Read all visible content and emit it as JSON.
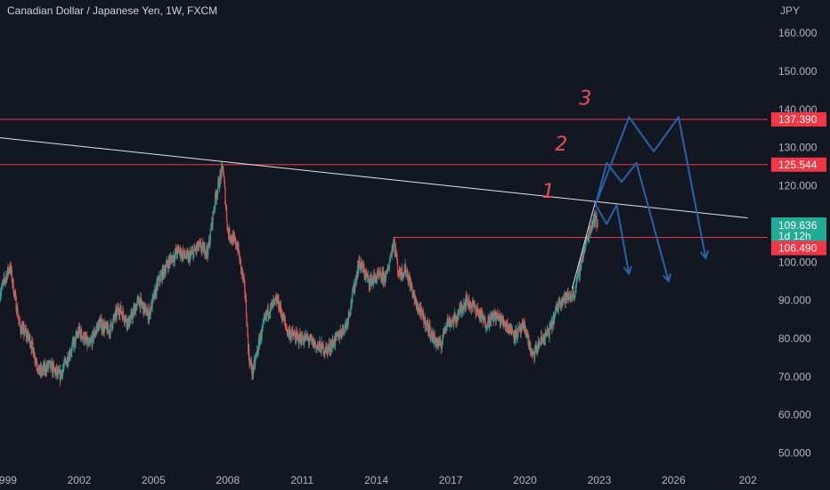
{
  "header": {
    "title": "Canadian Dollar / Japanese Yen, 1W, FXCM"
  },
  "colors": {
    "background": "#131722",
    "up": "#26a69a",
    "down": "#ef5350",
    "level_line": "#f23645",
    "trend_line": "#e0e3eb",
    "projection": "#2962a8",
    "current_tag": "#22ab94",
    "level_tag": "#f23645"
  },
  "chart_data": {
    "type": "candlestick",
    "symbol": "CADJPY",
    "currency_label": "JPY",
    "timeframe": "1W",
    "x_ticks": [
      "1999",
      "2002",
      "2005",
      "2008",
      "2011",
      "2014",
      "2017",
      "2020",
      "2023",
      "2026",
      "202"
    ],
    "y_ticks": [
      "160.000",
      "150.000",
      "140.000",
      "130.000",
      "120.000",
      "110.000",
      "100.000",
      "90.000",
      "80.000",
      "70.000",
      "60.000",
      "50.000"
    ],
    "y_range": [
      45,
      164
    ],
    "x_range": [
      1998.8,
      2029.8
    ],
    "price_path": [
      [
        1998.8,
        92
      ],
      [
        1999.2,
        99
      ],
      [
        1999.6,
        83
      ],
      [
        2000.0,
        80
      ],
      [
        2000.4,
        71
      ],
      [
        2000.8,
        73
      ],
      [
        2001.2,
        70
      ],
      [
        2001.6,
        76
      ],
      [
        2002.0,
        82
      ],
      [
        2002.4,
        78
      ],
      [
        2002.8,
        84
      ],
      [
        2003.2,
        82
      ],
      [
        2003.6,
        88
      ],
      [
        2004.0,
        84
      ],
      [
        2004.4,
        90
      ],
      [
        2004.8,
        86
      ],
      [
        2005.2,
        95
      ],
      [
        2005.6,
        100
      ],
      [
        2006.0,
        103
      ],
      [
        2006.4,
        101
      ],
      [
        2006.8,
        104
      ],
      [
        2007.2,
        103
      ],
      [
        2007.5,
        117
      ],
      [
        2007.8,
        125
      ],
      [
        2008.0,
        108
      ],
      [
        2008.4,
        104
      ],
      [
        2008.7,
        92
      ],
      [
        2008.85,
        75
      ],
      [
        2009.0,
        71
      ],
      [
        2009.3,
        80
      ],
      [
        2009.6,
        87
      ],
      [
        2010.0,
        90
      ],
      [
        2010.4,
        82
      ],
      [
        2010.8,
        80
      ],
      [
        2011.2,
        80
      ],
      [
        2011.6,
        78
      ],
      [
        2012.0,
        77
      ],
      [
        2012.4,
        80
      ],
      [
        2012.8,
        84
      ],
      [
        2013.0,
        90
      ],
      [
        2013.3,
        100
      ],
      [
        2013.7,
        95
      ],
      [
        2014.0,
        96
      ],
      [
        2014.4,
        96
      ],
      [
        2014.7,
        106
      ],
      [
        2014.9,
        97
      ],
      [
        2015.2,
        98
      ],
      [
        2015.6,
        89
      ],
      [
        2016.0,
        84
      ],
      [
        2016.3,
        80
      ],
      [
        2016.6,
        78
      ],
      [
        2016.8,
        84
      ],
      [
        2017.2,
        85
      ],
      [
        2017.6,
        90
      ],
      [
        2018.0,
        88
      ],
      [
        2018.4,
        84
      ],
      [
        2018.8,
        86
      ],
      [
        2019.2,
        84
      ],
      [
        2019.6,
        81
      ],
      [
        2020.0,
        83
      ],
      [
        2020.3,
        75
      ],
      [
        2020.6,
        79
      ],
      [
        2021.0,
        82
      ],
      [
        2021.4,
        90
      ],
      [
        2021.8,
        91
      ],
      [
        2022.0,
        92
      ],
      [
        2022.3,
        101
      ],
      [
        2022.6,
        108
      ],
      [
        2022.8,
        112
      ],
      [
        2022.95,
        109.6
      ]
    ],
    "levels": [
      {
        "price": 137.39,
        "label": "137.390",
        "x_start": 1998.8
      },
      {
        "price": 125.544,
        "label": "125.544",
        "x_start": 1998.8
      },
      {
        "price": 106.49,
        "label": "106.490",
        "x_start": 2014.7
      }
    ],
    "current_price": {
      "price": 109.636,
      "label": "109.636",
      "countdown": "1d 12h"
    },
    "trendlines": [
      {
        "points": [
          [
            1998.8,
            132.6
          ],
          [
            2029.0,
            111.6
          ]
        ]
      },
      {
        "points": [
          [
            2021.9,
            93
          ],
          [
            2022.85,
            116
          ]
        ]
      }
    ],
    "projections": [
      {
        "label": "1",
        "points": [
          [
            2022.85,
            115
          ],
          [
            2023.3,
            110
          ],
          [
            2023.7,
            115
          ],
          [
            2024.2,
            97
          ]
        ]
      },
      {
        "label": "2",
        "points": [
          [
            2022.85,
            115
          ],
          [
            2023.3,
            126
          ],
          [
            2023.9,
            121
          ],
          [
            2024.5,
            126
          ],
          [
            2025.8,
            95
          ]
        ]
      },
      {
        "label": "3",
        "points": [
          [
            2022.85,
            115
          ],
          [
            2024.2,
            138
          ],
          [
            2025.2,
            129
          ],
          [
            2026.2,
            138
          ],
          [
            2027.3,
            101
          ]
        ]
      }
    ]
  }
}
